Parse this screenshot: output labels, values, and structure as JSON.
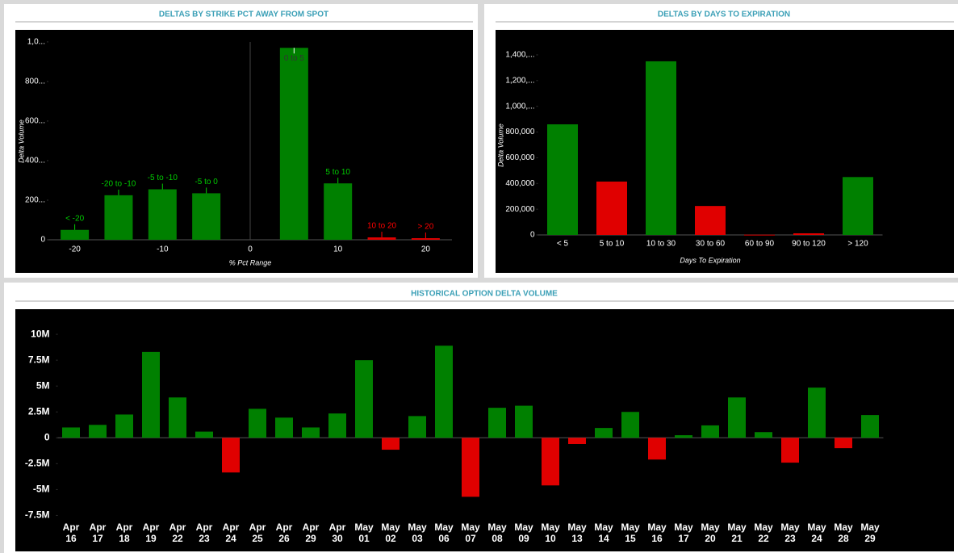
{
  "chart_data": [
    {
      "type": "bar",
      "title": "DELTAS BY STRIKE PCT AWAY FROM SPOT",
      "xlabel": "% Pct Range",
      "ylabel": "Delta Volume",
      "categories": [
        "< -20",
        "-20 to -10",
        "-5 to -10",
        "-5 to 0",
        "0 to 5",
        "5 to 10",
        "10 to 20",
        "> 20"
      ],
      "x": [
        -20,
        -15,
        -10,
        -5,
        5,
        10,
        15,
        20
      ],
      "values": [
        50,
        225,
        255,
        235,
        970,
        285,
        12,
        8
      ],
      "colors": [
        "#008000",
        "#008000",
        "#008000",
        "#008000",
        "#008000",
        "#008000",
        "#e00000",
        "#e00000"
      ],
      "xlim": [
        -23,
        23
      ],
      "xticks": [
        -20,
        -10,
        0,
        10,
        20
      ],
      "ylim": [
        0,
        1020
      ],
      "yticks": [
        0,
        {
          "value": 200,
          "label": "200..."
        },
        {
          "value": 400,
          "label": "400..."
        },
        {
          "value": 600,
          "label": "600..."
        },
        {
          "value": 800,
          "label": "800..."
        },
        {
          "value": 1000,
          "label": "1,0..."
        }
      ]
    },
    {
      "type": "bar",
      "title": "DELTAS BY DAYS TO EXPIRATION",
      "xlabel": "Days To Expiration",
      "ylabel": "Delta Volume",
      "categories": [
        "< 5",
        "5 to 10",
        "10 to 30",
        "30 to 60",
        "60 to 90",
        "90 to 120",
        "> 120"
      ],
      "values": [
        860000,
        415000,
        1350000,
        225000,
        2000,
        12500,
        450000
      ],
      "colors": [
        "#008000",
        "#e00000",
        "#008000",
        "#e00000",
        "#e00000",
        "#e00000",
        "#008000"
      ],
      "ylim": [
        0,
        1450000
      ],
      "yticks": [
        0,
        {
          "value": 200000,
          "label": "200,000"
        },
        {
          "value": 400000,
          "label": "400,000"
        },
        {
          "value": 600000,
          "label": "600,000"
        },
        {
          "value": 800000,
          "label": "800,000"
        },
        {
          "value": 1000000,
          "label": "1,000,..."
        },
        {
          "value": 1200000,
          "label": "1,200,..."
        },
        {
          "value": 1400000,
          "label": "1,400,..."
        }
      ]
    },
    {
      "type": "bar",
      "title": "HISTORICAL OPTION DELTA VOLUME",
      "categories": [
        "Apr 16",
        "Apr 17",
        "Apr 18",
        "Apr 19",
        "Apr 22",
        "Apr 23",
        "Apr 24",
        "Apr 25",
        "Apr 26",
        "Apr 29",
        "Apr 30",
        "May 01",
        "May 02",
        "May 03",
        "May 06",
        "May 07",
        "May 08",
        "May 09",
        "May 10",
        "May 13",
        "May 14",
        "May 15",
        "May 16",
        "May 17",
        "May 20",
        "May 21",
        "May 22",
        "May 23",
        "May 24",
        "May 28",
        "May 29"
      ],
      "values": [
        1.0,
        1.25,
        2.25,
        8.3,
        3.9,
        0.6,
        -3.35,
        2.8,
        1.95,
        1.0,
        2.35,
        7.5,
        -1.15,
        2.1,
        8.9,
        -5.7,
        2.9,
        3.1,
        -4.6,
        -0.6,
        0.95,
        2.5,
        -2.1,
        0.25,
        1.2,
        3.9,
        0.55,
        -2.4,
        4.85,
        -1.0,
        2.2
      ],
      "colors": [
        "#008000",
        "#008000",
        "#008000",
        "#008000",
        "#008000",
        "#008000",
        "#e00000",
        "#008000",
        "#008000",
        "#008000",
        "#008000",
        "#008000",
        "#e00000",
        "#008000",
        "#008000",
        "#e00000",
        "#008000",
        "#008000",
        "#e00000",
        "#e00000",
        "#008000",
        "#008000",
        "#e00000",
        "#008000",
        "#008000",
        "#008000",
        "#008000",
        "#e00000",
        "#008000",
        "#e00000",
        "#008000"
      ],
      "ylim": [
        -8.4,
        11.1
      ],
      "yticks": [
        {
          "value": -7.5,
          "label": "-7.5M"
        },
        {
          "value": -5,
          "label": "-5M"
        },
        {
          "value": -2.5,
          "label": "-2.5M"
        },
        0,
        {
          "value": 2.5,
          "label": "2.5M"
        },
        {
          "value": 5,
          "label": "5M"
        },
        {
          "value": 7.5,
          "label": "7.5M"
        },
        {
          "value": 10,
          "label": "10M"
        }
      ]
    }
  ]
}
